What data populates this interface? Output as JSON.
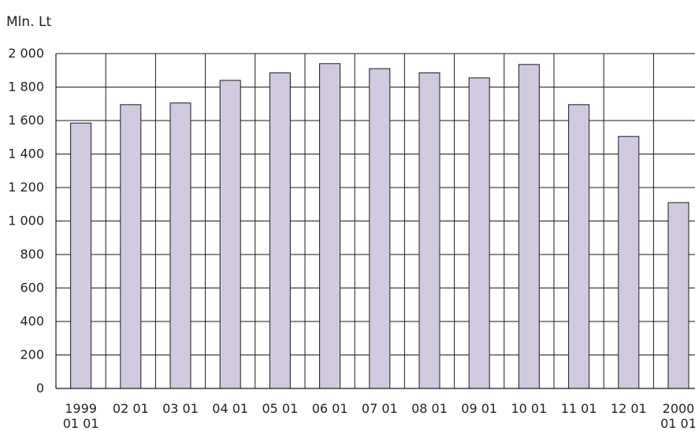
{
  "chart_data": {
    "type": "bar",
    "ylabel": "Mln. Lt",
    "categories": [
      [
        "1999",
        "01 01"
      ],
      [
        "02 01"
      ],
      [
        "03 01"
      ],
      [
        "04 01"
      ],
      [
        "05 01"
      ],
      [
        "06 01"
      ],
      [
        "07 01"
      ],
      [
        "08 01"
      ],
      [
        "09 01"
      ],
      [
        "10 01"
      ],
      [
        "11 01"
      ],
      [
        "12 01"
      ],
      [
        "2000",
        "01 01"
      ]
    ],
    "values": [
      1585,
      1695,
      1705,
      1840,
      1885,
      1940,
      1910,
      1885,
      1855,
      1935,
      1695,
      1505,
      1110
    ],
    "ylim": [
      0,
      2000
    ],
    "yticks": [
      0,
      200,
      400,
      600,
      800,
      1000,
      1200,
      1400,
      1600,
      1800,
      2000
    ],
    "ytick_labels": [
      "0",
      "200",
      "400",
      "600",
      "800",
      "1 000",
      "1 200",
      "1 400",
      "1 600",
      "1 800",
      "2 000"
    ],
    "grid": true,
    "bar_color": "#d1c9e0",
    "bar_edge_color": "#1a1a1a"
  }
}
